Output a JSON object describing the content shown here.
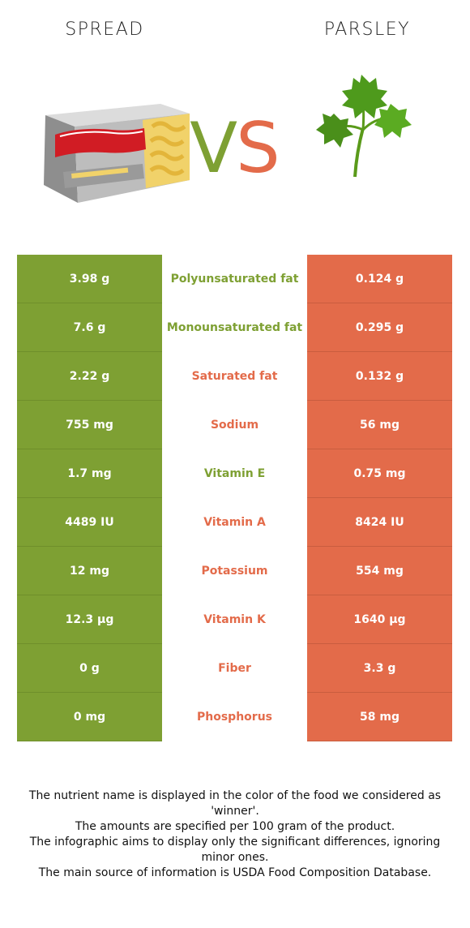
{
  "header": {
    "left_title": "SPREAD",
    "right_title": "PARSLEY",
    "vs_v": "V",
    "vs_s": "S"
  },
  "colors": {
    "winner_left": "#7ea033",
    "winner_right": "#e36b4a"
  },
  "images": {
    "left": "butter-package-icon",
    "right": "parsley-leaf-icon"
  },
  "rows": [
    {
      "left": "3.98 g",
      "nutrient": "Polyunsaturated fat",
      "right": "0.124 g",
      "winner": "left"
    },
    {
      "left": "7.6 g",
      "nutrient": "Monounsaturated fat",
      "right": "0.295 g",
      "winner": "left"
    },
    {
      "left": "2.22 g",
      "nutrient": "Saturated fat",
      "right": "0.132 g",
      "winner": "right"
    },
    {
      "left": "755 mg",
      "nutrient": "Sodium",
      "right": "56 mg",
      "winner": "right"
    },
    {
      "left": "1.7 mg",
      "nutrient": "Vitamin E",
      "right": "0.75 mg",
      "winner": "left"
    },
    {
      "left": "4489 IU",
      "nutrient": "Vitamin A",
      "right": "8424 IU",
      "winner": "right"
    },
    {
      "left": "12 mg",
      "nutrient": "Potassium",
      "right": "554 mg",
      "winner": "right"
    },
    {
      "left": "12.3 µg",
      "nutrient": "Vitamin K",
      "right": "1640 µg",
      "winner": "right"
    },
    {
      "left": "0 g",
      "nutrient": "Fiber",
      "right": "3.3 g",
      "winner": "right"
    },
    {
      "left": "0 mg",
      "nutrient": "Phosphorus",
      "right": "58 mg",
      "winner": "right"
    }
  ],
  "footer": {
    "line1": "The nutrient name is displayed in the color of the food we considered as 'winner'.",
    "line2": "The amounts are specified per 100 gram of the product.",
    "line3": "The infographic aims to display only the significant differences, ignoring minor ones.",
    "line4": "The main source of information is USDA Food Composition Database."
  }
}
